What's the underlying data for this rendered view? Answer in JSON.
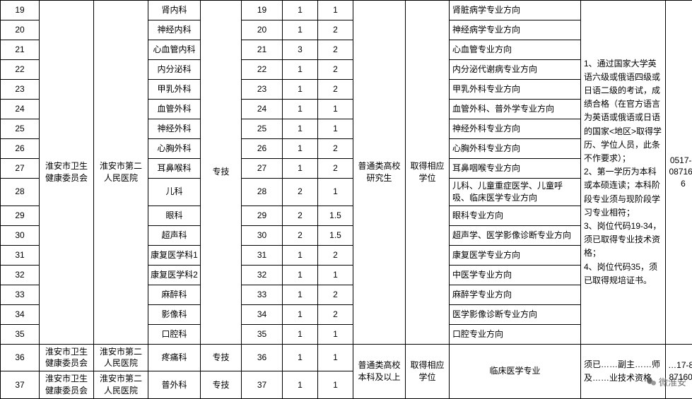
{
  "merged": {
    "committee": "淮安市卫生健康委员会",
    "hospital": "淮安市第二人民医院",
    "category": "专技",
    "edu": "普通类高校研究生",
    "degree": "取得相应学位",
    "remark": "1、通过国家大学英语六级或俄语四级或日语二级的考试，成绩合格（在官方语言为英语或俄语或日语的国家<地区>取得学历、学位人员，此条不作要求）；\n2、第一学历为本科或本硕连读；本科阶段专业须与现阶段学习专业相符；\n3、岗位代码19-34，须已取得专业技术资格；\n4、岗位代码35，须已取得规培证书。",
    "tel": "0517-80871606"
  },
  "rows_top": [
    {
      "idx": "19",
      "dept": "肾内科",
      "code": "19",
      "num": "1",
      "ratio": "1",
      "dir": "肾脏病学专业方向"
    },
    {
      "idx": "20",
      "dept": "神经内科",
      "code": "20",
      "num": "1",
      "ratio": "2",
      "dir": "神经病学专业方向"
    },
    {
      "idx": "21",
      "dept": "心血管内科",
      "code": "21",
      "num": "3",
      "ratio": "2",
      "dir": "心血管专业方向"
    },
    {
      "idx": "22",
      "dept": "内分泌科",
      "code": "22",
      "num": "1",
      "ratio": "2",
      "dir": "内分泌代谢病专业方向"
    },
    {
      "idx": "23",
      "dept": "甲乳外科",
      "code": "23",
      "num": "1",
      "ratio": "2",
      "dir": "甲乳外科专业方向"
    },
    {
      "idx": "24",
      "dept": "血管外科",
      "code": "24",
      "num": "1",
      "ratio": "1",
      "dir": "血管外科、普外学专业方向"
    },
    {
      "idx": "25",
      "dept": "神经外科",
      "code": "25",
      "num": "1",
      "ratio": "1",
      "dir": "神经外科专业方向"
    },
    {
      "idx": "26",
      "dept": "心胸外科",
      "code": "26",
      "num": "1",
      "ratio": "2",
      "dir": "心胸外科专业方向"
    },
    {
      "idx": "27",
      "dept": "耳鼻喉科",
      "code": "27",
      "num": "1",
      "ratio": "2",
      "dir": "耳鼻咽喉专业方向"
    },
    {
      "idx": "28",
      "dept": "儿科",
      "code": "28",
      "num": "2",
      "ratio": "1",
      "dir": "儿科、儿童重症医学、儿童呼吸、临床医学专业方向"
    },
    {
      "idx": "29",
      "dept": "眼科",
      "code": "29",
      "num": "2",
      "ratio": "1.5",
      "dir": "眼科专业方向"
    },
    {
      "idx": "30",
      "dept": "超声科",
      "code": "30",
      "num": "2",
      "ratio": "1.5",
      "dir": "超声学、医学影像诊断专业方向"
    },
    {
      "idx": "31",
      "dept": "康复医学科1",
      "code": "31",
      "num": "1",
      "ratio": "2",
      "dir": "康复医学专业方向"
    },
    {
      "idx": "32",
      "dept": "康复医学科2",
      "code": "32",
      "num": "1",
      "ratio": "1",
      "dir": "中医学专业方向"
    },
    {
      "idx": "33",
      "dept": "麻醉科",
      "code": "33",
      "num": "1",
      "ratio": "2",
      "dir": "麻醉学专业方向"
    },
    {
      "idx": "34",
      "dept": "影像科",
      "code": "34",
      "num": "1",
      "ratio": "2",
      "dir": "医学影像诊断专业方向"
    },
    {
      "idx": "35",
      "dept": "口腔科",
      "code": "35",
      "num": "1",
      "ratio": "1",
      "dir": "口腔专业方向"
    }
  ],
  "merged2": {
    "edu": "普通类高校本科及以上",
    "degree": "取得相应学位",
    "dir": "临床医学专业",
    "remark": "须已……副主……师及……业技术资格",
    "tel": "…17-80871606"
  },
  "rows_bottom": [
    {
      "idx": "36",
      "committee": "淮安市卫生健康委员会",
      "hospital": "淮安市第二人民医院",
      "dept": "疼痛科",
      "cat": "专技",
      "code": "36",
      "num": "1",
      "ratio": "1"
    },
    {
      "idx": "37",
      "committee": "淮安市卫生健康委员会",
      "hospital": "淮安市第二人民医院",
      "dept": "普外科",
      "cat": "专技",
      "code": "37",
      "num": "1",
      "ratio": "1"
    }
  ],
  "watermark": "微淮安"
}
